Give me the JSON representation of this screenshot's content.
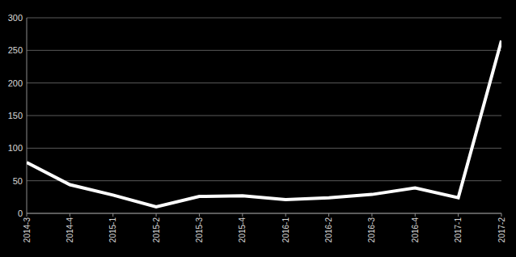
{
  "chart_data": {
    "type": "line",
    "categories": [
      "2014-3",
      "2014-4",
      "2015-1",
      "2015-2",
      "2015-3",
      "2015-4",
      "2016-1",
      "2016-2",
      "2016-3",
      "2016-4",
      "2017-1",
      "2017-2"
    ],
    "values": [
      78,
      44,
      28,
      10,
      26,
      27,
      21,
      24,
      29,
      39,
      24,
      265
    ],
    "color": "#ffffff",
    "ylim": [
      0,
      300
    ],
    "yticks": [
      0,
      50,
      100,
      150,
      200,
      250,
      300
    ],
    "grid": true
  }
}
